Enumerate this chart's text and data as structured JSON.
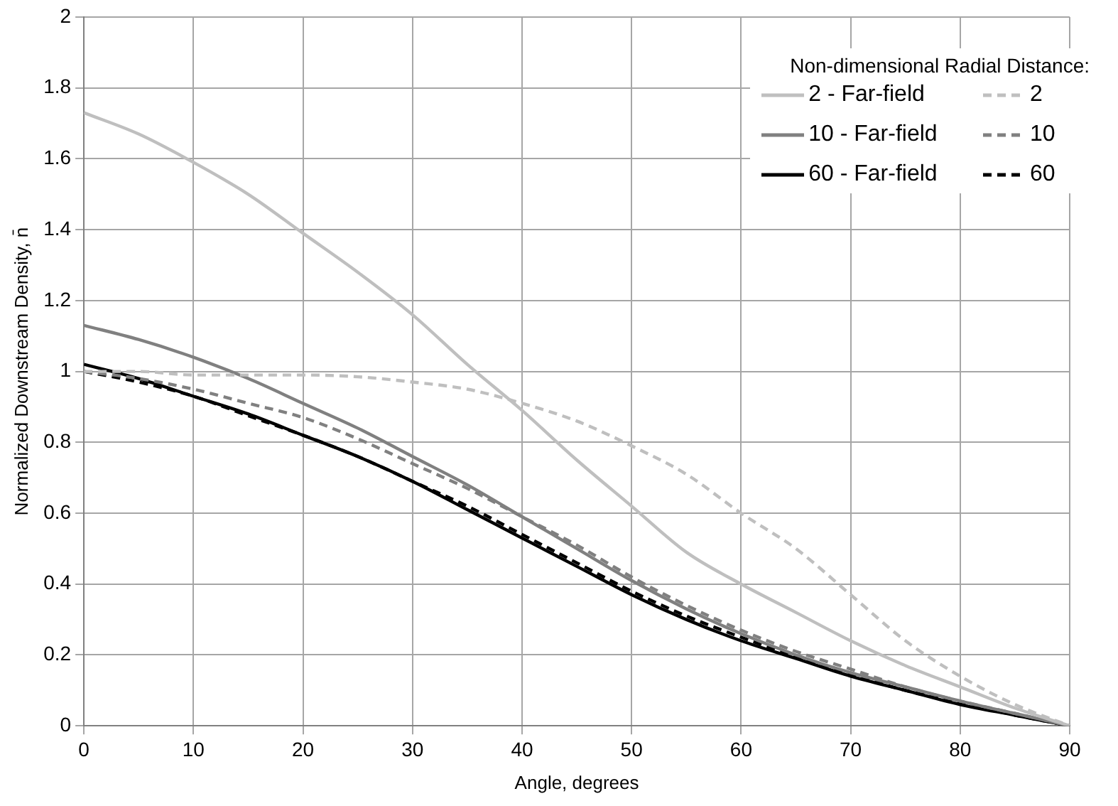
{
  "chart_data": {
    "type": "line",
    "xlabel": "Angle, degrees",
    "ylabel": "Normalized Downstream Density, n̄",
    "legend_title": "Non-dimensional Radial Distance:",
    "x": [
      0,
      5,
      10,
      15,
      20,
      25,
      30,
      35,
      40,
      45,
      50,
      55,
      60,
      65,
      70,
      75,
      80,
      85,
      90
    ],
    "series": [
      {
        "name": "2 - Far-field",
        "color": "#bfbfbf",
        "line_style": "solid",
        "values": [
          1.73,
          1.67,
          1.59,
          1.5,
          1.39,
          1.28,
          1.16,
          1.02,
          0.89,
          0.75,
          0.62,
          0.49,
          0.4,
          0.32,
          0.24,
          0.17,
          0.11,
          0.05,
          0
        ]
      },
      {
        "name": "2",
        "color": "#bfbfbf",
        "line_style": "dashed",
        "values": [
          1.0,
          1.0,
          0.99,
          0.99,
          0.99,
          0.985,
          0.97,
          0.95,
          0.91,
          0.86,
          0.79,
          0.71,
          0.6,
          0.5,
          0.37,
          0.24,
          0.14,
          0.06,
          0
        ]
      },
      {
        "name": "10 - Far-field",
        "color": "#808080",
        "line_style": "solid",
        "values": [
          1.13,
          1.09,
          1.04,
          0.98,
          0.91,
          0.84,
          0.76,
          0.68,
          0.59,
          0.5,
          0.41,
          0.33,
          0.26,
          0.2,
          0.15,
          0.11,
          0.07,
          0.035,
          0
        ]
      },
      {
        "name": "10",
        "color": "#808080",
        "line_style": "dashed",
        "values": [
          1.0,
          0.98,
          0.95,
          0.91,
          0.87,
          0.81,
          0.74,
          0.67,
          0.59,
          0.51,
          0.42,
          0.34,
          0.27,
          0.21,
          0.16,
          0.11,
          0.07,
          0.035,
          0
        ]
      },
      {
        "name": "60 - Far-field",
        "color": "#000000",
        "line_style": "solid",
        "values": [
          1.02,
          0.98,
          0.93,
          0.88,
          0.82,
          0.76,
          0.69,
          0.61,
          0.53,
          0.45,
          0.37,
          0.3,
          0.24,
          0.19,
          0.14,
          0.1,
          0.06,
          0.03,
          0
        ]
      },
      {
        "name": "60",
        "color": "#000000",
        "line_style": "dashed",
        "values": [
          1.0,
          0.97,
          0.93,
          0.875,
          0.82,
          0.76,
          0.69,
          0.62,
          0.54,
          0.46,
          0.38,
          0.31,
          0.25,
          0.195,
          0.145,
          0.1,
          0.065,
          0.03,
          0
        ]
      }
    ],
    "xlim": [
      0,
      90
    ],
    "xticks": [
      0,
      10,
      20,
      30,
      40,
      50,
      60,
      70,
      80,
      90
    ],
    "ylim": [
      0,
      2
    ],
    "yticks": [
      0,
      0.2,
      0.4,
      0.6,
      0.8,
      1,
      1.2,
      1.4,
      1.6,
      1.8,
      2
    ],
    "grid": true,
    "legend": "top right",
    "marker": "none"
  }
}
